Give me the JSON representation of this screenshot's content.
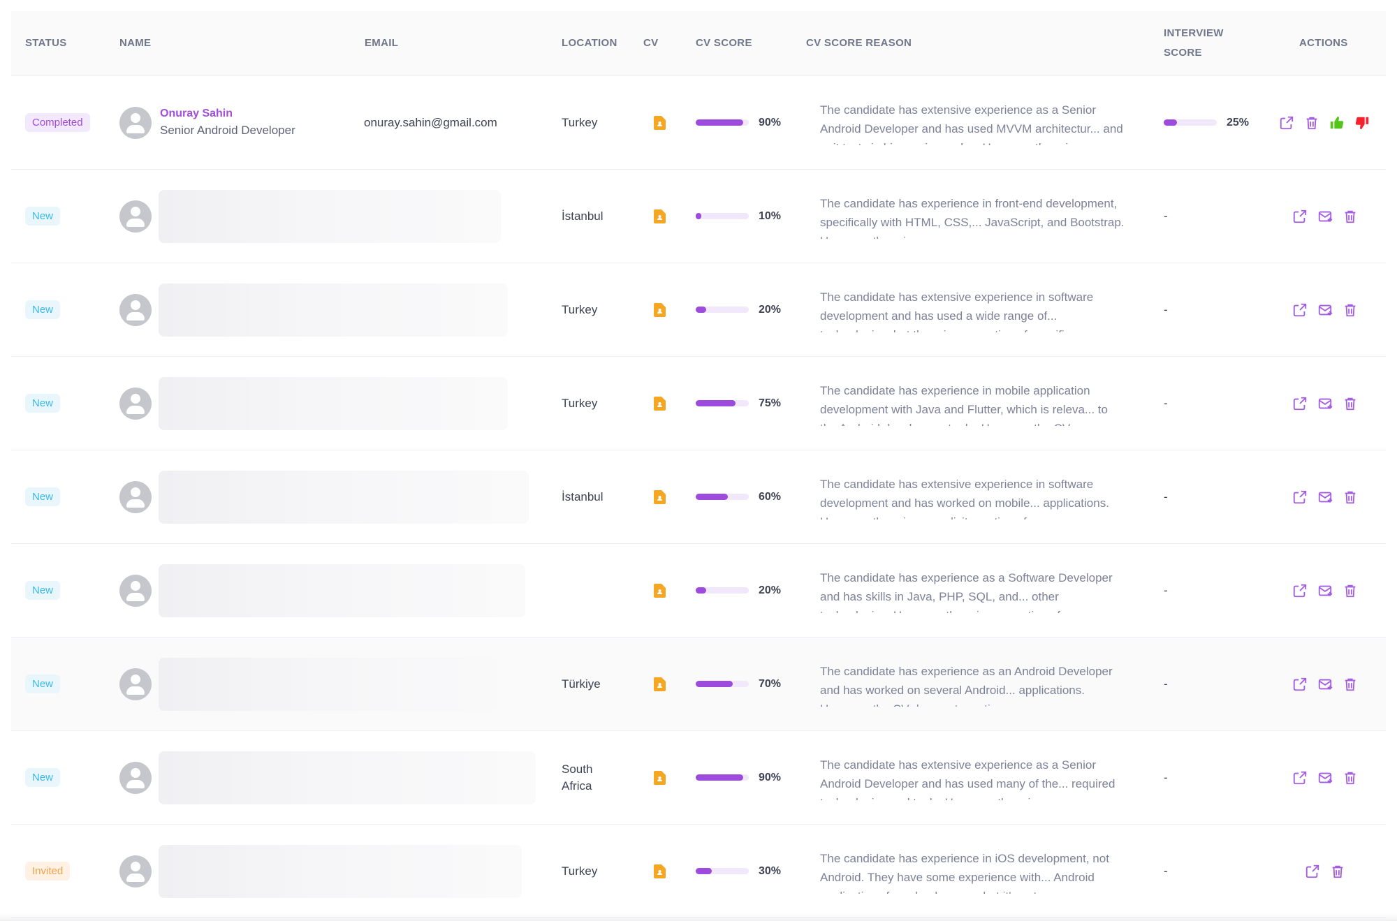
{
  "columns": {
    "status": "STATUS",
    "name": "NAME",
    "email": "EMAIL",
    "location": "LOCATION",
    "cv": "CV",
    "cv_score": "CV SCORE",
    "cv_score_reason": "CV SCORE REASON",
    "interview_score_line1": "INTERVIEW",
    "interview_score_line2": "SCORE",
    "actions": "ACTIONS"
  },
  "colors": {
    "accent": "#9d4bdd",
    "completed": "#a24ad6",
    "new": "#3bb8ea",
    "invited": "#f5a04a",
    "thumbs_up": "#52c41a",
    "thumbs_down": "#f5222d",
    "cv_icon": "#f5a623"
  },
  "rows": [
    {
      "status": "Completed",
      "status_kind": "completed",
      "name": "Onuray Sahin",
      "title": "Senior Android Developer",
      "email": "onuray.sahin@gmail.com",
      "location": "Turkey",
      "cv_icon": "file-icon",
      "cv_score": 90,
      "cv_score_label": "90%",
      "reason": "The candidate has extensive experience as a Senior Android Developer and has used MVVM architectur... and unit tests in his previous roles. However, there is",
      "interview_score": 25,
      "interview_score_label": "25%",
      "actions": [
        "open-icon",
        "delete-icon",
        "thumbs-up-icon",
        "thumbs-down-icon"
      ]
    },
    {
      "status": "New",
      "status_kind": "new",
      "name_hidden": true,
      "location": "İstanbul",
      "cv_icon": "file-icon",
      "cv_score": 10,
      "cv_score_label": "10%",
      "reason": "The candidate has experience in front-end development, specifically with HTML, CSS,... JavaScript, and Bootstrap. However, there is no",
      "interview_score_label": "-",
      "actions": [
        "open-icon",
        "invite-mail-icon",
        "delete-icon"
      ]
    },
    {
      "status": "New",
      "status_kind": "new",
      "name_hidden": true,
      "location": "Turkey",
      "cv_icon": "file-icon",
      "cv_score": 20,
      "cv_score_label": "20%",
      "reason": "The candidate has extensive experience in software development and has used a wide range of... technologies, but there is no mention of specific",
      "interview_score_label": "-",
      "actions": [
        "open-icon",
        "invite-mail-icon",
        "delete-icon"
      ]
    },
    {
      "status": "New",
      "status_kind": "new",
      "name_hidden": true,
      "location": "Turkey",
      "cv_icon": "file-icon",
      "cv_score": 75,
      "cv_score_label": "75%",
      "reason": "The candidate has experience in mobile application development with Java and Flutter, which is releva... to the Android development role. However, the CV",
      "interview_score_label": "-",
      "actions": [
        "open-icon",
        "invite-mail-icon",
        "delete-icon"
      ]
    },
    {
      "status": "New",
      "status_kind": "new",
      "name_hidden": true,
      "location": "İstanbul",
      "cv_icon": "file-icon",
      "cv_score": 60,
      "cv_score_label": "60%",
      "reason": "The candidate has extensive experience in software development and has worked on mobile... applications. However, there is no explicit mention of",
      "interview_score_label": "-",
      "actions": [
        "open-icon",
        "invite-mail-icon",
        "delete-icon"
      ]
    },
    {
      "status": "New",
      "status_kind": "new",
      "name_hidden": true,
      "location": "",
      "cv_icon": "file-icon",
      "cv_score": 20,
      "cv_score_label": "20%",
      "reason": "The candidate has experience as a Software Developer and has skills in Java, PHP, SQL, and... other technologies. However, there is no mention of",
      "interview_score_label": "-",
      "actions": [
        "open-icon",
        "invite-mail-icon",
        "delete-icon"
      ]
    },
    {
      "status": "New",
      "status_kind": "new",
      "name_hidden": true,
      "location": "Türkiye",
      "cv_icon": "file-icon",
      "cv_score": 70,
      "cv_score_label": "70%",
      "reason": "The candidate has experience as an Android Developer and has worked on several Android... applications. However, the CV does not mention",
      "interview_score_label": "-",
      "actions": [
        "open-icon",
        "invite-mail-icon",
        "delete-icon"
      ]
    },
    {
      "status": "New",
      "status_kind": "new",
      "name_hidden": true,
      "location": "South Africa",
      "cv_icon": "file-icon",
      "cv_score": 90,
      "cv_score_label": "90%",
      "reason": "The candidate has extensive experience as a Senior Android Developer and has used many of the... required technologies and tools. However, there is",
      "interview_score_label": "-",
      "actions": [
        "open-icon",
        "invite-mail-icon",
        "delete-icon"
      ]
    },
    {
      "status": "Invited",
      "status_kind": "invited",
      "name_hidden": true,
      "location": "Turkey",
      "cv_icon": "file-icon",
      "cv_score": 30,
      "cv_score_label": "30%",
      "reason": "The candidate has experience in iOS development, not Android. They have some experience with... Android applications for school course, but it's not",
      "interview_score_label": "-",
      "actions": [
        "open-icon",
        "delete-icon"
      ]
    }
  ]
}
